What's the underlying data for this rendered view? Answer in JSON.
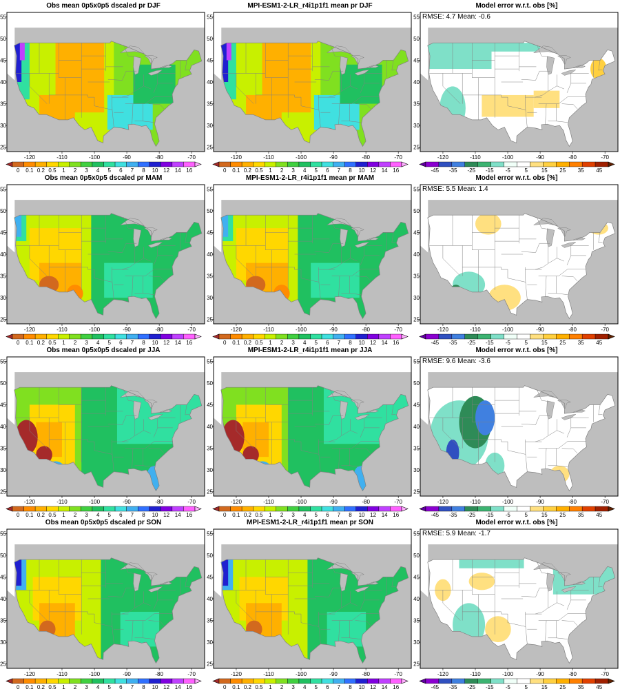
{
  "lon_ticks": [
    "-120",
    "-110",
    "-100",
    "-90",
    "-80",
    "-70"
  ],
  "lat_ticks": [
    "25",
    "30",
    "35",
    "40",
    "45",
    "50",
    "55"
  ],
  "precip_scale": {
    "labels": [
      "0",
      "0.1",
      "0.2",
      "0.5",
      "1",
      "2",
      "3",
      "4",
      "5",
      "6",
      "7",
      "8",
      "10",
      "12",
      "14",
      "16"
    ],
    "colors": [
      "#a52a2a",
      "#d2691e",
      "#ff8c00",
      "#ffb000",
      "#ffd700",
      "#c8f000",
      "#80e020",
      "#40d040",
      "#20c060",
      "#30e0a0",
      "#40e0e0",
      "#40b0f0",
      "#3070ff",
      "#2020d0",
      "#8000e0",
      "#c040ff",
      "#ff60ff",
      "#ffb0ff"
    ]
  },
  "error_scale": {
    "labels": [
      "-45",
      "-35",
      "-25",
      "-15",
      "-5",
      "5",
      "15",
      "25",
      "35",
      "45"
    ],
    "colors": [
      "#6000a0",
      "#8a00d0",
      "#3050c0",
      "#4080e0",
      "#2e8b57",
      "#3cb371",
      "#7fe0c8",
      "#f0fff8",
      "#ffffff",
      "#ffe080",
      "#ffd040",
      "#ffb000",
      "#ff8000",
      "#e04000",
      "#a02000",
      "#602000"
    ]
  },
  "map_colors": {
    "ocean": "#ffffff",
    "land_outside": "#bebebe",
    "lakes": "#bebebe",
    "borders": "#808080"
  },
  "rows": [
    {
      "season": "DJF",
      "obs_title": "Obs mean 0p5x0p5 dscaled pr DJF",
      "model_title": "MPI-ESM1-2-LR_r4i1p1f1 mean pr DJF",
      "error_title": "Model error w.r.t. obs [%]",
      "rmse_text": "RMSE: 4.7  Mean: -0.6"
    },
    {
      "season": "MAM",
      "obs_title": "Obs mean 0p5x0p5 dscaled pr MAM",
      "model_title": "MPI-ESM1-2-LR_r4i1p1f1 mean pr MAM",
      "error_title": "Model error w.r.t. obs [%]",
      "rmse_text": "RMSE: 5.5  Mean: 1.4"
    },
    {
      "season": "JJA",
      "obs_title": "Obs mean 0p5x0p5 dscaled pr JJA",
      "model_title": "MPI-ESM1-2-LR_r4i1p1f1 mean pr JJA",
      "error_title": "Model error w.r.t. obs [%]",
      "rmse_text": "RMSE: 9.6  Mean: -3.6"
    },
    {
      "season": "SON",
      "obs_title": "Obs mean 0p5x0p5 dscaled pr SON",
      "model_title": "MPI-ESM1-2-LR_r4i1p1f1 mean pr SON",
      "error_title": "Model error w.r.t. obs [%]",
      "rmse_text": "RMSE: 5.9  Mean: -1.7"
    }
  ]
}
